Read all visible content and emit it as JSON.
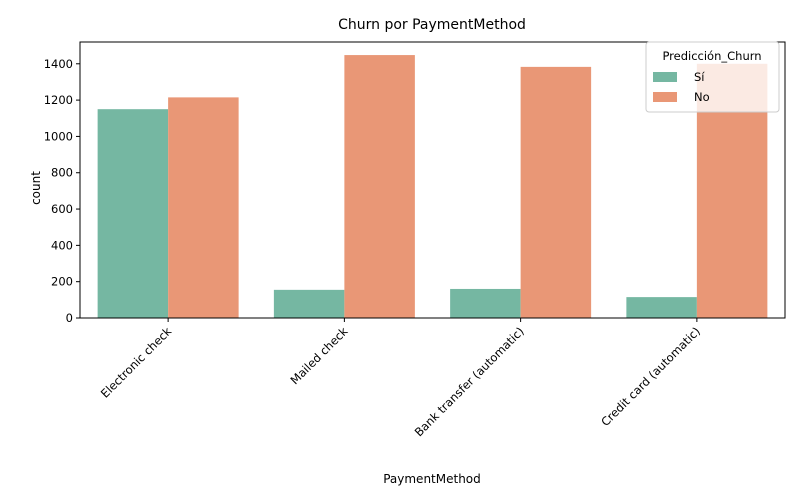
{
  "chart_data": {
    "type": "bar",
    "title": "Churn por PaymentMethod",
    "xlabel": "PaymentMethod",
    "ylabel": "count",
    "categories": [
      "Electronic check",
      "Mailed check",
      "Bank transfer (automatic)",
      "Credit card (automatic)"
    ],
    "series": [
      {
        "name": "Sí",
        "values": [
          1150,
          155,
          160,
          115
        ],
        "color": "#75b7a2"
      },
      {
        "name": "No",
        "values": [
          1215,
          1448,
          1383,
          1400
        ],
        "color": "#e99776"
      }
    ],
    "ylim": [
      0,
      1520
    ],
    "yticks": [
      0,
      200,
      400,
      600,
      800,
      1000,
      1200,
      1400
    ],
    "legend": {
      "title": "Predicción_Churn",
      "placement": "top-right"
    },
    "grid": false
  }
}
